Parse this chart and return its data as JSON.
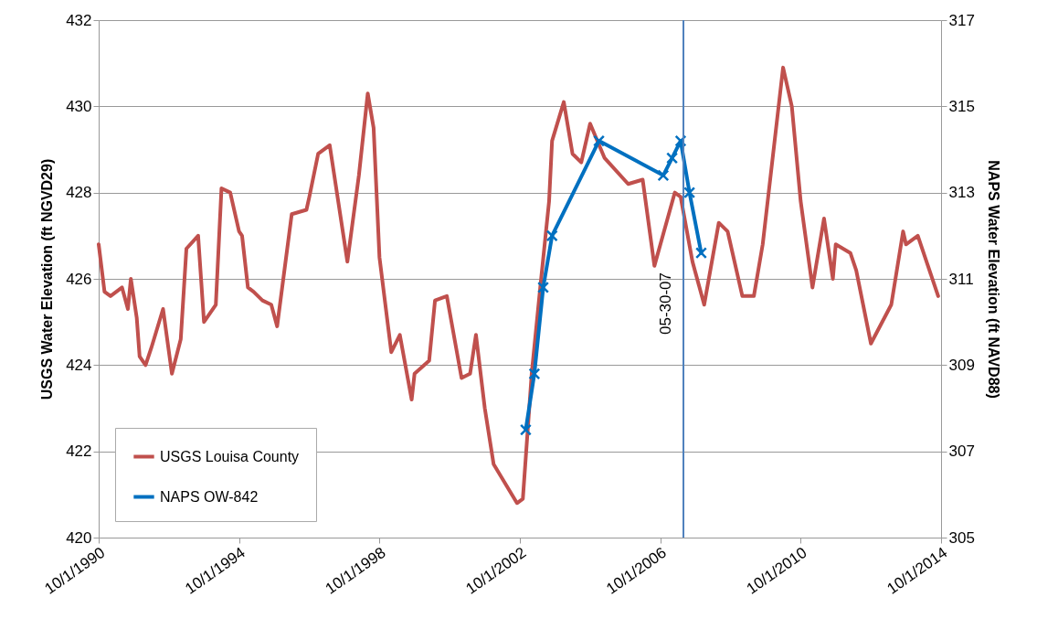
{
  "chart_data": {
    "type": "line",
    "ylabel": "USGS Water Elevation (ft NGVD29)",
    "y2label": "NAPS Water Elevation (ft NAVD88)",
    "xlim": [
      "1990-10-01",
      "2014-10-01"
    ],
    "xticks": [
      {
        "value": "1990-10-01",
        "label": "10/1/1990"
      },
      {
        "value": "1994-10-01",
        "label": "10/1/1994"
      },
      {
        "value": "1998-10-01",
        "label": "10/1/1998"
      },
      {
        "value": "2002-10-01",
        "label": "10/1/2002"
      },
      {
        "value": "2006-10-01",
        "label": "10/1/2006"
      },
      {
        "value": "2010-10-01",
        "label": "10/1/2010"
      },
      {
        "value": "2014-10-01",
        "label": "10/1/2014"
      }
    ],
    "ylim": [
      420,
      432
    ],
    "yticks": [
      420,
      422,
      424,
      426,
      428,
      430,
      432
    ],
    "y2lim": [
      305,
      317
    ],
    "y2ticks": [
      305,
      307,
      309,
      311,
      313,
      315,
      317
    ],
    "grid": "y",
    "legend": "bottom left",
    "line_style": "solid",
    "series": [
      {
        "name": "USGS Louisa County",
        "color": "#c0504d",
        "marker": "none",
        "x": [
          "1990-10",
          "1990-12",
          "1991-02",
          "1991-06",
          "1991-08",
          "1991-09",
          "1991-11",
          "1991-12",
          "1992-02",
          "1992-04",
          "1992-08",
          "1992-11",
          "1993-02",
          "1993-04",
          "1993-08",
          "1993-10",
          "1994-02",
          "1994-04",
          "1994-07",
          "1994-10",
          "1994-11",
          "1995-01",
          "1995-03",
          "1995-06",
          "1995-09",
          "1995-11",
          "1996-04",
          "1996-09",
          "1996-10",
          "1997-01",
          "1997-05",
          "1997-11",
          "1998-03",
          "1998-06",
          "1998-08",
          "1998-10",
          "1999-02",
          "1999-05",
          "1999-09",
          "1999-10",
          "2000-03",
          "2000-05",
          "2000-09",
          "2001-02",
          "2001-05",
          "2001-07",
          "2001-10",
          "2002-01",
          "2002-09",
          "2002-11",
          "2003-02",
          "2003-05",
          "2003-08",
          "2003-09",
          "2004-01",
          "2004-04",
          "2004-07",
          "2004-10",
          "2005-03",
          "2005-11",
          "2006-04",
          "2006-08",
          "2007-03",
          "2007-05",
          "2007-09",
          "2008-01",
          "2008-06",
          "2008-09",
          "2009-02",
          "2009-06",
          "2009-09",
          "2010-04",
          "2010-07",
          "2010-10",
          "2011-02",
          "2011-06",
          "2011-09",
          "2011-10",
          "2012-03",
          "2012-05",
          "2012-10",
          "2013-05",
          "2013-09",
          "2013-10",
          "2014-02",
          "2014-09"
        ],
        "values": [
          426.8,
          425.7,
          425.6,
          425.8,
          425.3,
          426.0,
          425.1,
          424.2,
          424.0,
          424.4,
          425.3,
          423.8,
          424.6,
          426.7,
          427.0,
          425.0,
          425.4,
          428.1,
          428.0,
          427.1,
          427.0,
          425.8,
          425.7,
          425.5,
          425.4,
          424.9,
          427.5,
          427.6,
          427.9,
          428.9,
          429.1,
          426.4,
          428.4,
          430.3,
          429.5,
          426.5,
          424.3,
          424.7,
          423.2,
          423.8,
          424.1,
          425.5,
          425.6,
          423.7,
          423.8,
          424.7,
          423.0,
          421.7,
          420.8,
          420.9,
          423.8,
          425.8,
          427.8,
          429.2,
          430.1,
          428.9,
          428.7,
          429.6,
          428.8,
          428.2,
          428.3,
          426.3,
          428.0,
          427.9,
          426.4,
          425.4,
          427.3,
          427.1,
          425.6,
          425.6,
          426.8,
          430.9,
          430.0,
          427.8,
          425.8,
          427.4,
          426.0,
          426.8,
          426.6,
          426.2,
          424.5,
          425.4,
          427.1,
          426.8,
          427.0,
          425.6
        ]
      },
      {
        "name": "NAPS OW-842",
        "color": "#0070c0",
        "marker": "cross",
        "axis": "y2",
        "x": [
          "2002-12",
          "2003-03",
          "2003-06",
          "2003-09",
          "2005-01",
          "2006-11",
          "2007-02",
          "2007-05",
          "2007-08",
          "2007-12"
        ],
        "values": [
          307.5,
          308.8,
          310.8,
          312.0,
          314.2,
          313.4,
          313.8,
          314.2,
          313.0,
          311.6
        ]
      }
    ],
    "ref_lines": [
      {
        "axis": "x",
        "value": "2007-05-30",
        "label": "05-30-07",
        "color": "#4f81bd"
      }
    ]
  }
}
